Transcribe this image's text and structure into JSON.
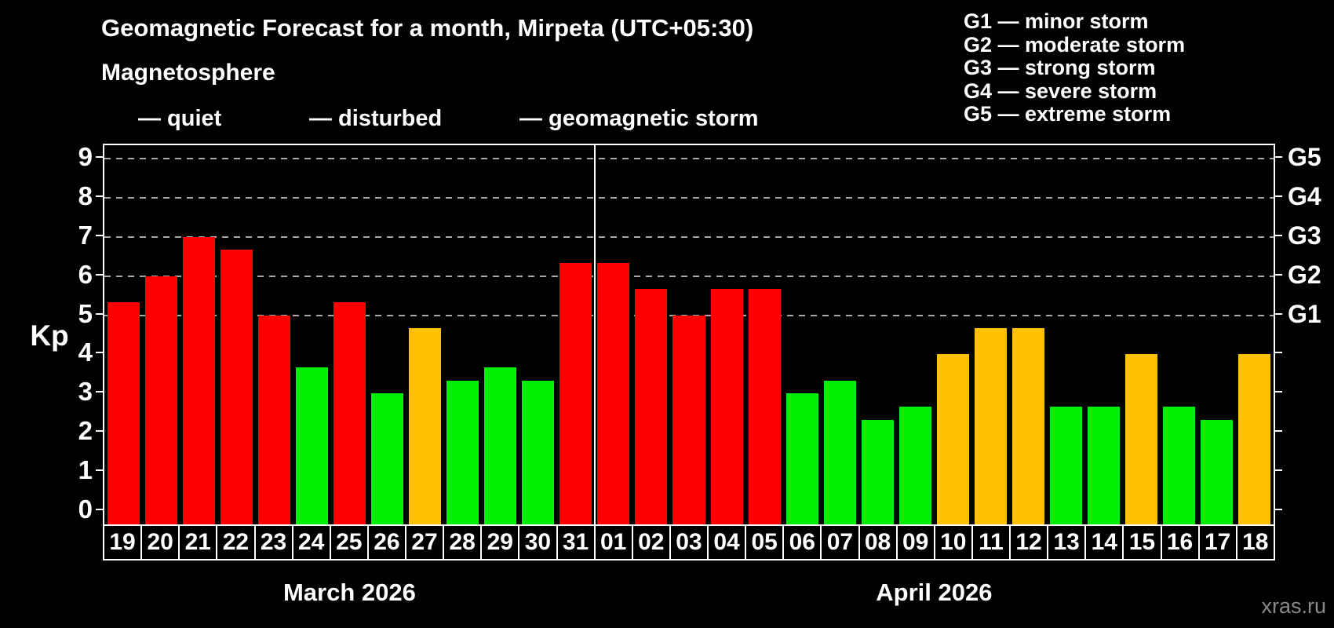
{
  "title": "Geomagnetic Forecast for a month, Mirpeta (UTC+05:30)",
  "subtitle": "Magnetosphere",
  "legend": {
    "quiet": {
      "label": "— quiet",
      "color": "#00ee00"
    },
    "disturbed": {
      "label": "— disturbed",
      "color": "#ffc000"
    },
    "storm": {
      "label": "— geomagnetic storm",
      "color": "#ff0000"
    }
  },
  "g_legend": [
    "G1 — minor storm",
    "G2 — moderate storm",
    "G3 — strong storm",
    "G4 — severe storm",
    "G5 — extreme storm"
  ],
  "watermark": "xras.ru",
  "chart_data": {
    "type": "bar",
    "title": "Geomagnetic Forecast for a month, Mirpeta (UTC+05:30)",
    "ylabel": "Kp",
    "xlabel": "",
    "ylim": [
      -0.35,
      9.35
    ],
    "y_ticks": [
      0,
      1,
      2,
      3,
      4,
      5,
      6,
      7,
      8,
      9
    ],
    "grid_levels": [
      5,
      6,
      7,
      8,
      9
    ],
    "grid_color": "#a8a8a8",
    "legend_position": "top",
    "right_axis_labels": [
      {
        "label": "G1",
        "value": 5
      },
      {
        "label": "G2",
        "value": 6
      },
      {
        "label": "G3",
        "value": 7
      },
      {
        "label": "G4",
        "value": 8
      },
      {
        "label": "G5",
        "value": 9
      }
    ],
    "months": [
      {
        "label": "March 2026",
        "days": 13
      },
      {
        "label": "April 2026",
        "days": 18
      }
    ],
    "categories": [
      "19",
      "20",
      "21",
      "22",
      "23",
      "24",
      "25",
      "26",
      "27",
      "28",
      "29",
      "30",
      "31",
      "01",
      "02",
      "03",
      "04",
      "05",
      "06",
      "07",
      "08",
      "09",
      "10",
      "11",
      "12",
      "13",
      "14",
      "15",
      "16",
      "17",
      "18"
    ],
    "values": [
      5.33,
      6.0,
      7.0,
      6.67,
      5.0,
      3.67,
      5.33,
      3.0,
      4.67,
      3.33,
      3.67,
      3.33,
      6.33,
      6.33,
      5.67,
      5.0,
      5.67,
      5.67,
      3.0,
      3.33,
      2.33,
      2.67,
      4.0,
      4.67,
      4.67,
      2.67,
      2.67,
      4.0,
      2.67,
      2.33,
      4.0
    ],
    "statuses": [
      "storm",
      "storm",
      "storm",
      "storm",
      "storm",
      "quiet",
      "storm",
      "quiet",
      "disturbed",
      "quiet",
      "quiet",
      "quiet",
      "storm",
      "storm",
      "storm",
      "storm",
      "storm",
      "storm",
      "quiet",
      "quiet",
      "quiet",
      "quiet",
      "disturbed",
      "disturbed",
      "disturbed",
      "quiet",
      "quiet",
      "disturbed",
      "quiet",
      "quiet",
      "disturbed"
    ]
  }
}
